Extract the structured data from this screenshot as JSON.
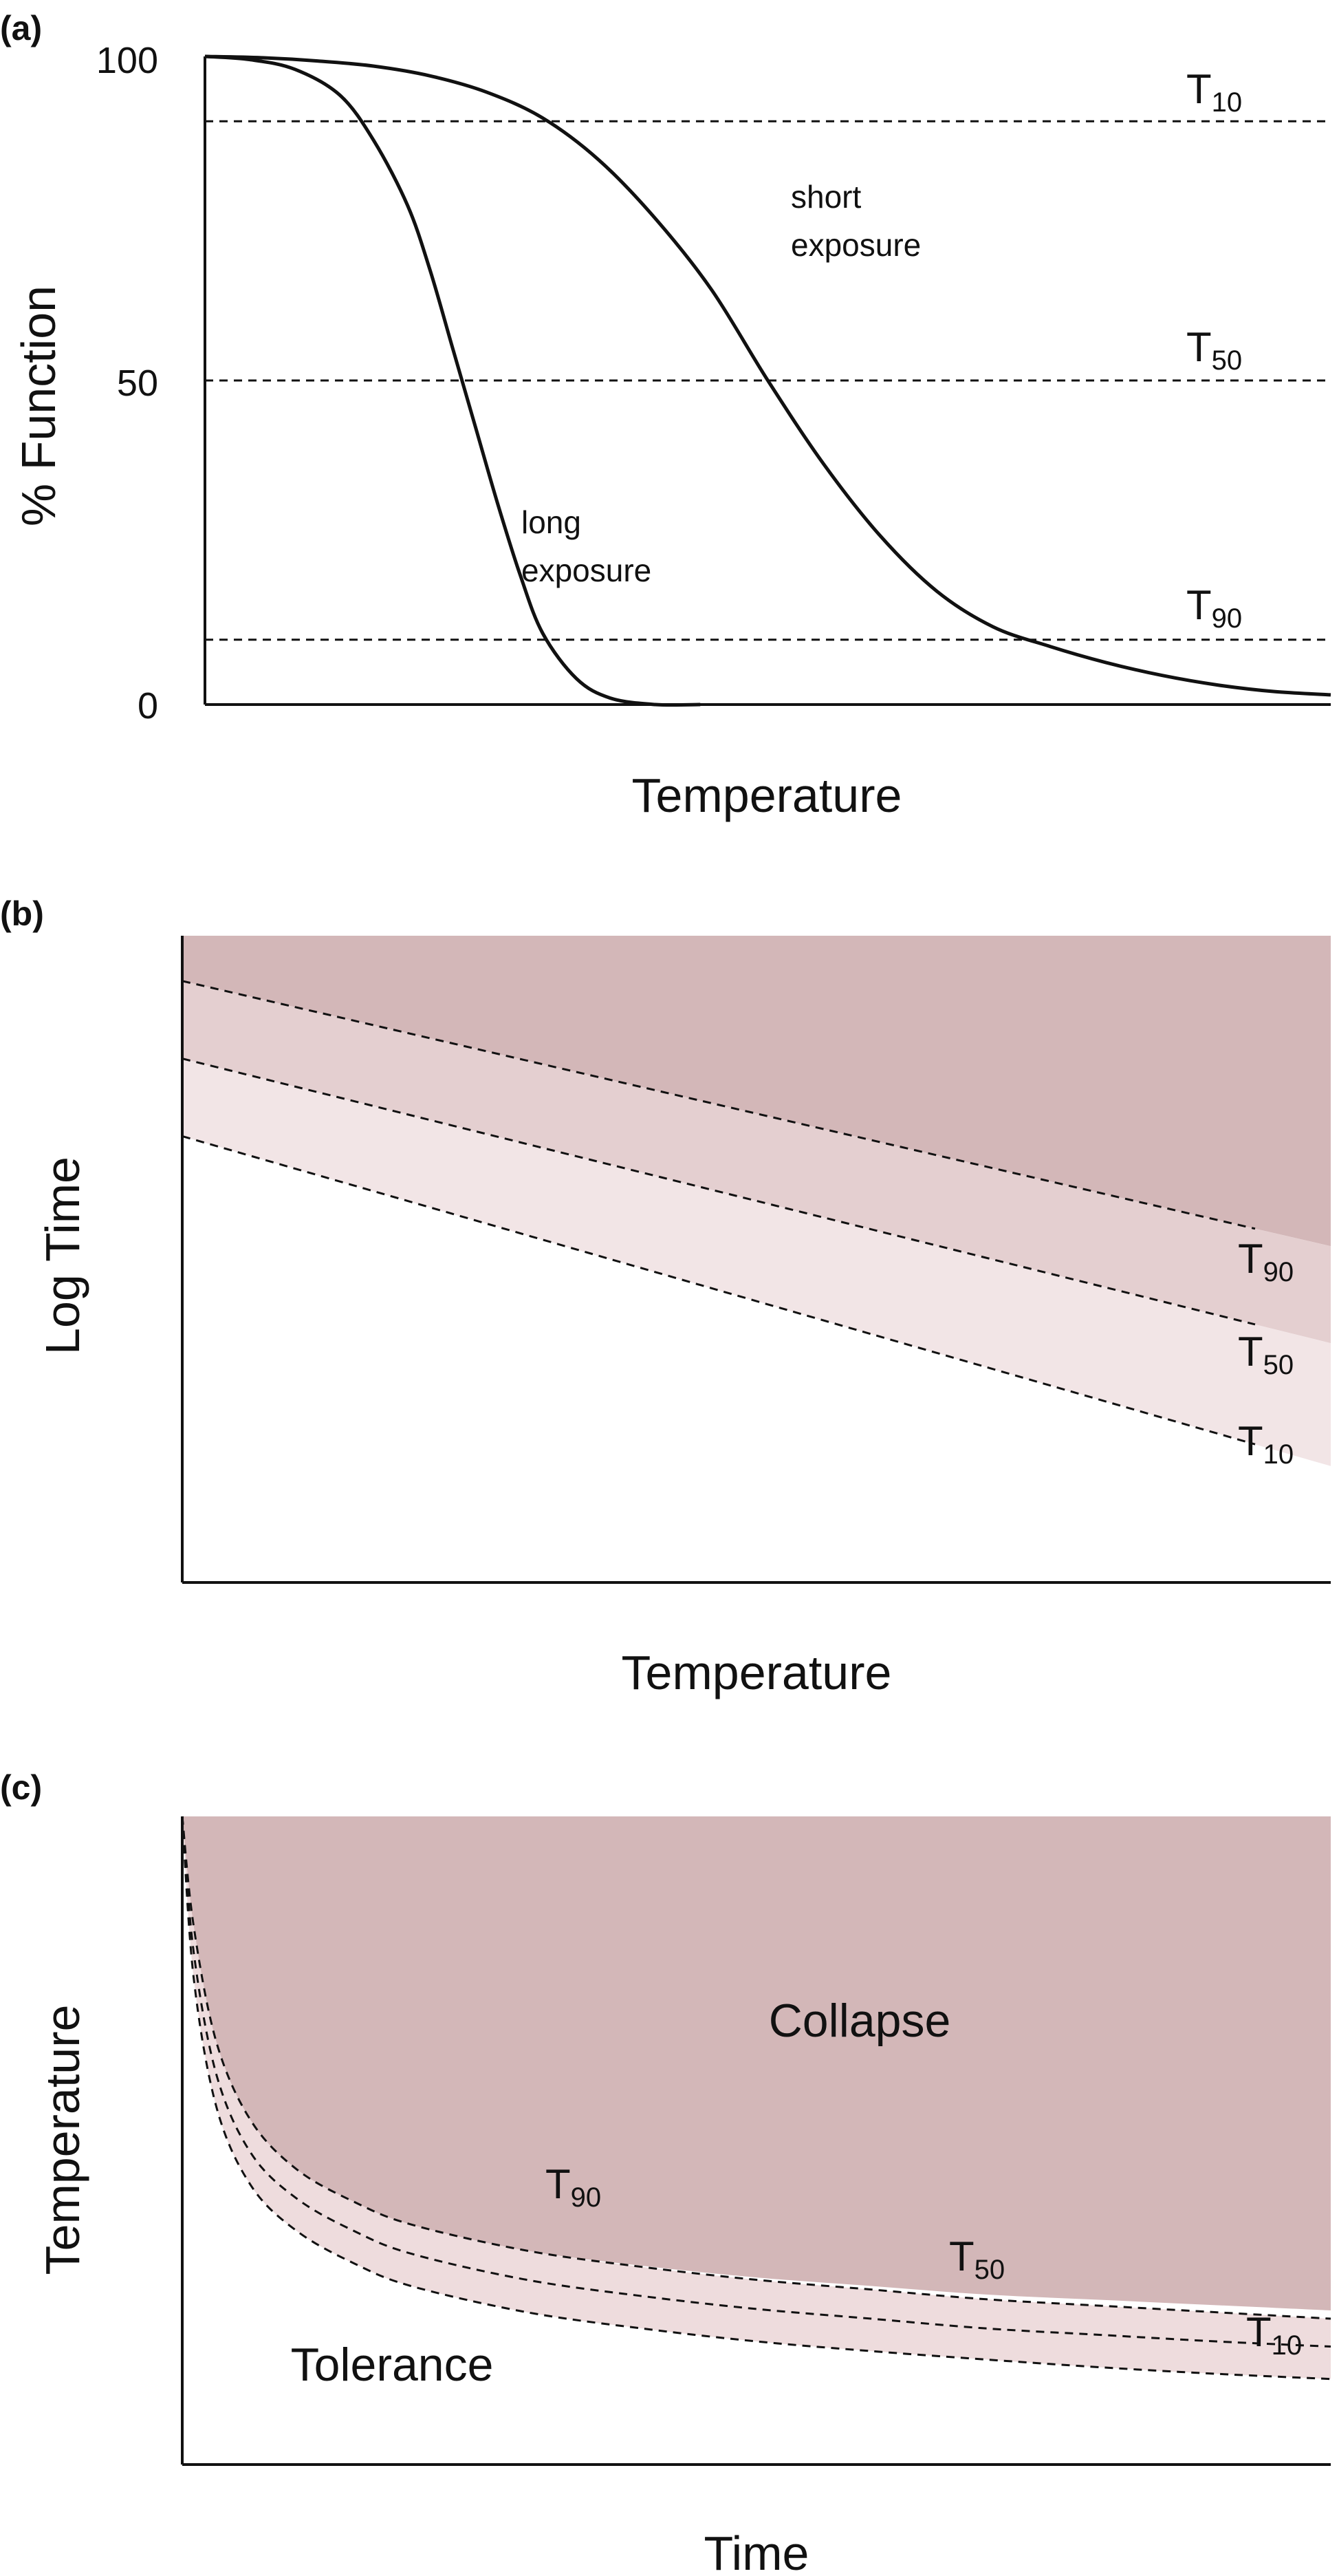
{
  "chart_data": [
    {
      "panel": "(a)",
      "type": "line",
      "xlabel": "Temperature",
      "ylabel": "% Function",
      "ylim": [
        0,
        100
      ],
      "y_ticks": [
        "0",
        "50",
        "100"
      ],
      "x_ticks": [],
      "series": [
        {
          "label": "long exposure",
          "x": [
            0.0,
            0.04,
            0.08,
            0.12,
            0.15,
            0.18,
            0.2,
            0.22,
            0.24,
            0.26,
            0.28,
            0.3,
            0.33,
            0.36,
            0.4,
            0.44
          ],
          "y": [
            100,
            99.5,
            98,
            94,
            87,
            77,
            67,
            55,
            43,
            31,
            20,
            11,
            4,
            1,
            0,
            0
          ]
        },
        {
          "label": "short exposure",
          "x": [
            0.0,
            0.05,
            0.1,
            0.15,
            0.2,
            0.25,
            0.3,
            0.35,
            0.4,
            0.45,
            0.5,
            0.55,
            0.6,
            0.65,
            0.7,
            0.75,
            0.8,
            0.85,
            0.9,
            0.95,
            1.0
          ],
          "y": [
            100,
            99.8,
            99.3,
            98.5,
            97,
            94.5,
            90.5,
            84,
            75,
            64,
            50,
            37,
            26,
            17.5,
            12,
            9,
            6.5,
            4.5,
            3,
            2,
            1.5
          ]
        }
      ],
      "thresholds": [
        {
          "label": "T",
          "sub": "10",
          "y": 90
        },
        {
          "label": "T",
          "sub": "50",
          "y": 50
        },
        {
          "label": "T",
          "sub": "90",
          "y": 10
        }
      ]
    },
    {
      "panel": "(b)",
      "type": "area",
      "xlabel": "Temperature",
      "ylabel": "Log Time",
      "series": [
        {
          "label": "T",
          "sub": "90",
          "x": [
            0,
            1
          ],
          "y": [
            0.93,
            0.52
          ]
        },
        {
          "label": "T",
          "sub": "50",
          "x": [
            0,
            1
          ],
          "y": [
            0.81,
            0.37
          ]
        },
        {
          "label": "T",
          "sub": "10",
          "x": [
            0,
            1
          ],
          "y": [
            0.69,
            0.18
          ]
        }
      ],
      "colors": {
        "dark": "#d3b7b8",
        "mid": "#e4cfd0",
        "light": "#f2e5e6"
      }
    },
    {
      "panel": "(c)",
      "type": "area",
      "xlabel": "Time",
      "ylabel": "Temperature",
      "regions": {
        "upper": "Collapse",
        "lower": "Tolerance"
      },
      "series": [
        {
          "label": "T",
          "sub": "90",
          "x": [
            0,
            0.01,
            0.03,
            0.06,
            0.1,
            0.15,
            0.2,
            0.3,
            0.4,
            0.5,
            0.6,
            0.7,
            0.8,
            0.9,
            1.0
          ],
          "y": [
            1.0,
            0.83,
            0.65,
            0.53,
            0.455,
            0.405,
            0.37,
            0.33,
            0.305,
            0.285,
            0.27,
            0.255,
            0.245,
            0.235,
            0.225
          ]
        },
        {
          "label": "T",
          "sub": "50",
          "x": [
            0,
            0.01,
            0.03,
            0.06,
            0.1,
            0.15,
            0.2,
            0.3,
            0.4,
            0.5,
            0.6,
            0.7,
            0.8,
            0.9,
            1.0
          ],
          "y": [
            1.0,
            0.79,
            0.6,
            0.48,
            0.41,
            0.36,
            0.325,
            0.285,
            0.26,
            0.24,
            0.225,
            0.21,
            0.2,
            0.19,
            0.182
          ]
        },
        {
          "label": "T",
          "sub": "10",
          "x": [
            0,
            0.01,
            0.03,
            0.06,
            0.1,
            0.15,
            0.2,
            0.3,
            0.4,
            0.5,
            0.6,
            0.7,
            0.8,
            0.9,
            1.0
          ],
          "y": [
            1.0,
            0.75,
            0.55,
            0.43,
            0.36,
            0.31,
            0.275,
            0.235,
            0.21,
            0.19,
            0.175,
            0.162,
            0.15,
            0.14,
            0.132
          ]
        }
      ],
      "colors": {
        "dark": "#d3b7b8",
        "light": "#eedcdd"
      }
    }
  ],
  "annotations": {
    "short": "short",
    "exposure1": "exposure",
    "long": "long",
    "exposure2": "exposure"
  }
}
